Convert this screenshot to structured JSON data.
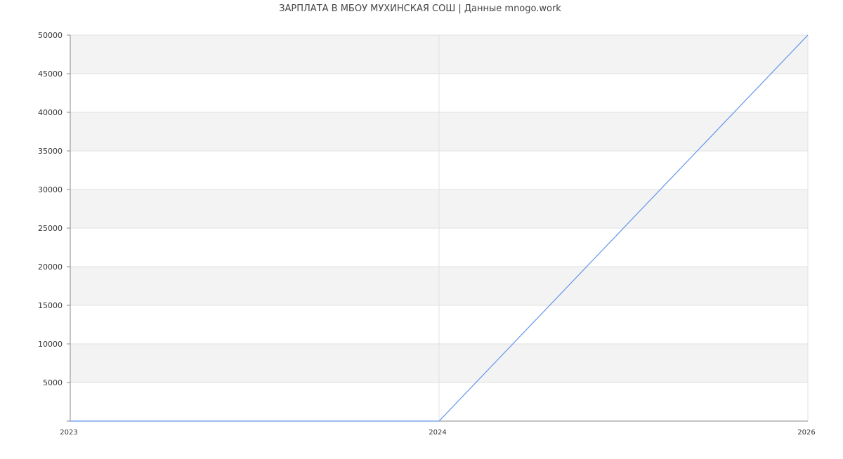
{
  "chart_data": {
    "type": "line",
    "title": "ЗАРПЛАТА В МБОУ МУХИНСКАЯ СОШ | Данные mnogo.work",
    "xlabel": "",
    "ylabel": "",
    "categories": [
      "2023",
      "2024",
      "2026"
    ],
    "series": [
      {
        "values": [
          0,
          0,
          50000
        ]
      }
    ],
    "ylim": [
      0,
      50000
    ],
    "yticks": [
      5000,
      10000,
      15000,
      20000,
      25000,
      30000,
      35000,
      40000,
      45000,
      50000
    ],
    "grid": true,
    "alternating_bands": true,
    "legend": "none",
    "colors": {
      "line": "#6495ed",
      "band": "#f3f3f3",
      "grid": "#e0e0e0",
      "axis": "#888888",
      "text": "#333333"
    }
  }
}
